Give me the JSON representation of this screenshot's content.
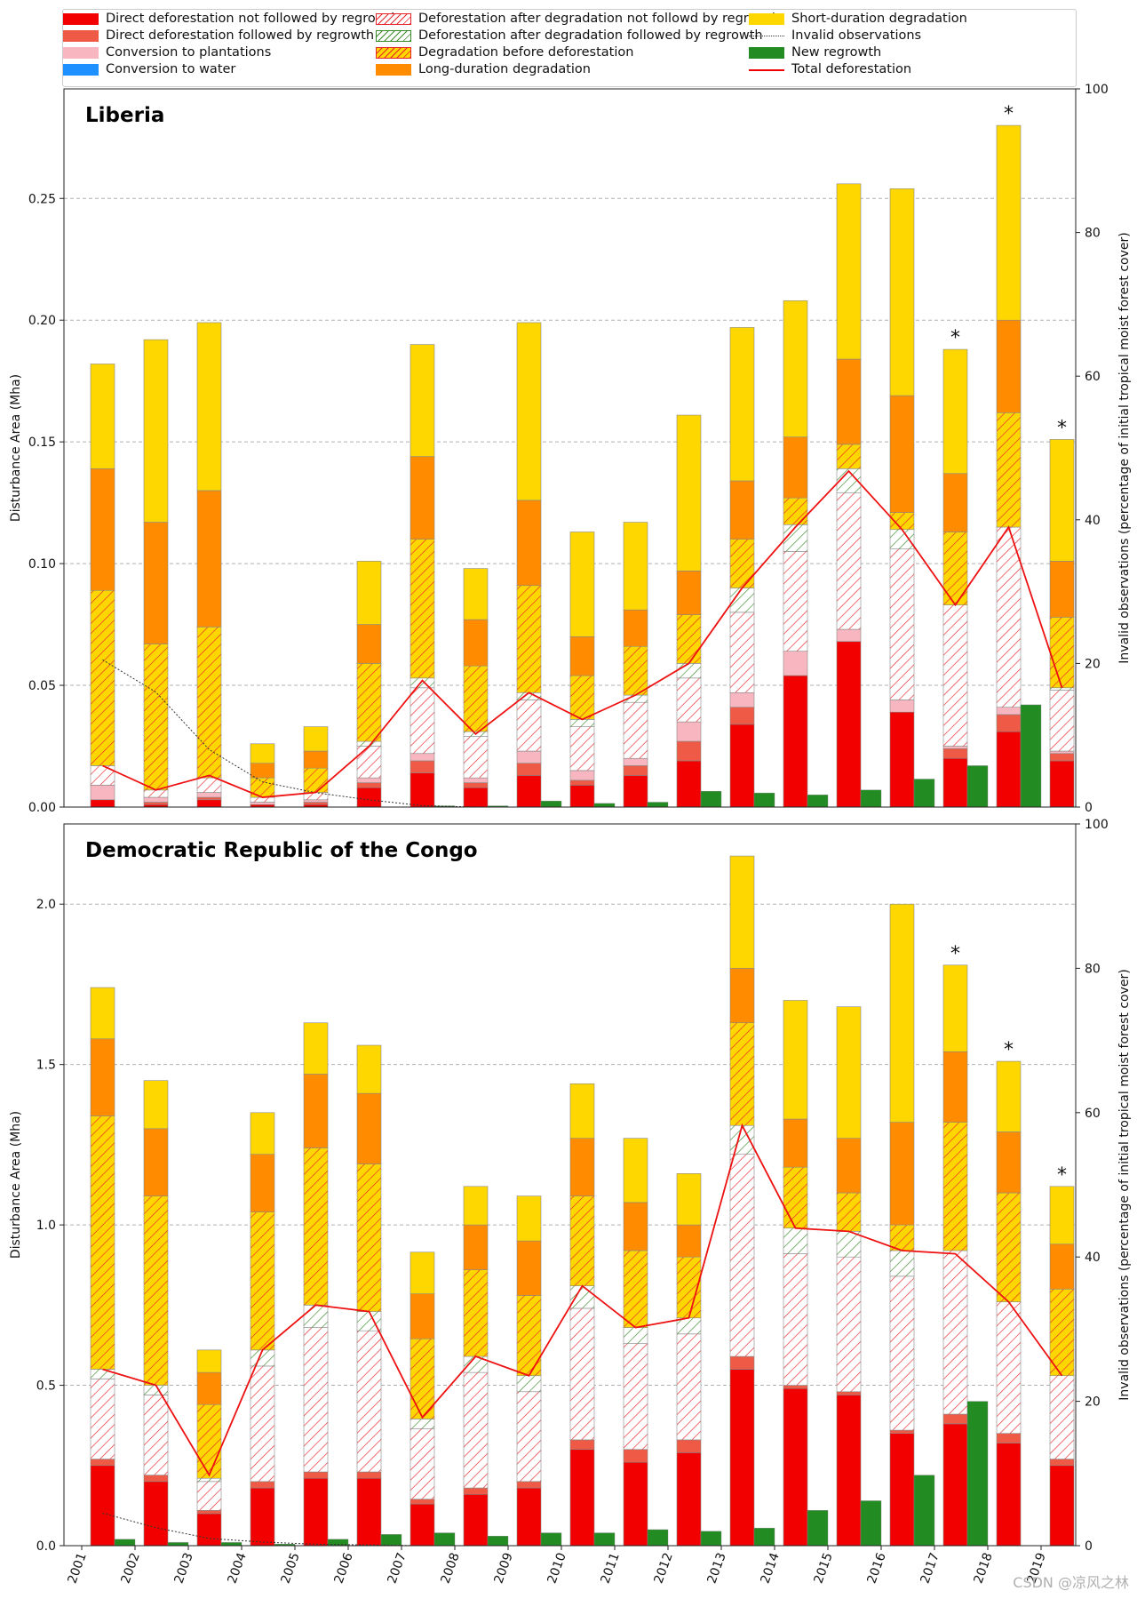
{
  "legend": {
    "items": [
      {
        "key": "direct_no_regrowth",
        "label": "Direct deforestation not followed by regrowth",
        "style": "solid",
        "color": "#f20000"
      },
      {
        "key": "direct_regrowth",
        "label": "Direct deforestation followed by regrowth",
        "style": "solid",
        "color": "#ee5a45"
      },
      {
        "key": "plantations",
        "label": "Conversion to plantations",
        "style": "solid",
        "color": "#f8b7c0"
      },
      {
        "key": "water",
        "label": "Conversion to water",
        "style": "solid",
        "color": "#1e90ff"
      },
      {
        "key": "after_deg_no_regrowth",
        "label": "Deforestation after degradation not followd by regrowth",
        "style": "hatch",
        "color": "#ffffff",
        "hatch": "#e8242a"
      },
      {
        "key": "after_deg_regrowth",
        "label": "Deforestation after degradation followed by regrowth",
        "style": "hatch",
        "color": "#ffffff",
        "hatch": "#3a8a2a"
      },
      {
        "key": "deg_before_defor",
        "label": "Degradation before deforestation",
        "style": "hatch",
        "color": "#ffd700",
        "hatch": "#e8242a"
      },
      {
        "key": "long_deg",
        "label": "Long-duration degradation",
        "style": "solid",
        "color": "#ff8c00"
      },
      {
        "key": "short_deg",
        "label": "Short-duration degradation",
        "style": "solid",
        "color": "#ffd700"
      },
      {
        "key": "invalid",
        "label": "Invalid observations",
        "style": "dotted",
        "color": "#333333"
      },
      {
        "key": "regrowth",
        "label": "New regrowth",
        "style": "solid",
        "color": "#228b22"
      },
      {
        "key": "total",
        "label": "Total deforestation",
        "style": "line",
        "color": "#ee1111"
      }
    ]
  },
  "watermark": "CSDN @凉风之林",
  "chart_data": [
    {
      "type": "bar",
      "title": "Liberia",
      "ylabel": "Disturbance Area (Mha)",
      "ylabel_right": "Invalid observations (percentage of initial tropical moist forest cover)",
      "ylim": [
        0,
        0.295
      ],
      "yticks": [
        0.0,
        0.05,
        0.1,
        0.15,
        0.2,
        0.25
      ],
      "ytick_labels": [
        "0.00",
        "0.05",
        "0.10",
        "0.15",
        "0.20",
        "0.25"
      ],
      "ylim_right": [
        0,
        100
      ],
      "yticks_right": [
        0,
        20,
        40,
        60,
        80,
        100
      ],
      "grid": true,
      "show_xticks": false,
      "categories": [
        "2001",
        "2002",
        "2003",
        "2004",
        "2005",
        "2006",
        "2007",
        "2008",
        "2009",
        "2010",
        "2011",
        "2012",
        "2013",
        "2014",
        "2015",
        "2016",
        "2017",
        "2018",
        "2019"
      ],
      "stack_order": [
        "direct_no_regrowth",
        "direct_regrowth",
        "plantations",
        "water",
        "after_deg_no_regrowth",
        "after_deg_regrowth",
        "deg_before_defor",
        "long_deg",
        "short_deg"
      ],
      "series": [
        {
          "key": "direct_no_regrowth",
          "values": [
            0.003,
            0.001,
            0.003,
            0.001,
            0.001,
            0.008,
            0.014,
            0.008,
            0.013,
            0.009,
            0.013,
            0.019,
            0.034,
            0.054,
            0.068,
            0.039,
            0.02,
            0.031,
            0.019
          ]
        },
        {
          "key": "direct_regrowth",
          "values": [
            0.0,
            0.001,
            0.001,
            0.0,
            0.001,
            0.002,
            0.005,
            0.002,
            0.005,
            0.002,
            0.004,
            0.008,
            0.007,
            0.0,
            0.0,
            0.0,
            0.004,
            0.007,
            0.003
          ]
        },
        {
          "key": "plantations",
          "values": [
            0.006,
            0.002,
            0.002,
            0.001,
            0.001,
            0.002,
            0.003,
            0.002,
            0.005,
            0.004,
            0.003,
            0.008,
            0.006,
            0.01,
            0.005,
            0.005,
            0.001,
            0.003,
            0.001
          ]
        },
        {
          "key": "water",
          "values": [
            0,
            0,
            0,
            0,
            0,
            0,
            0,
            0,
            0,
            0,
            0,
            0,
            0,
            0,
            0,
            0,
            0,
            0,
            0
          ]
        },
        {
          "key": "after_deg_no_regrowth",
          "values": [
            0.008,
            0.003,
            0.006,
            0.002,
            0.003,
            0.013,
            0.027,
            0.017,
            0.021,
            0.018,
            0.023,
            0.018,
            0.033,
            0.041,
            0.056,
            0.062,
            0.058,
            0.074,
            0.025
          ]
        },
        {
          "key": "after_deg_regrowth",
          "values": [
            0.0,
            0.0,
            0.0,
            0.0,
            0.0,
            0.002,
            0.004,
            0.002,
            0.003,
            0.003,
            0.003,
            0.006,
            0.01,
            0.011,
            0.01,
            0.008,
            0.0,
            0.0,
            0.001
          ]
        },
        {
          "key": "deg_before_defor",
          "values": [
            0.072,
            0.06,
            0.062,
            0.008,
            0.01,
            0.032,
            0.057,
            0.027,
            0.044,
            0.018,
            0.02,
            0.02,
            0.02,
            0.011,
            0.01,
            0.007,
            0.03,
            0.047,
            0.029
          ]
        },
        {
          "key": "long_deg",
          "values": [
            0.05,
            0.05,
            0.056,
            0.006,
            0.007,
            0.016,
            0.034,
            0.019,
            0.035,
            0.016,
            0.015,
            0.018,
            0.024,
            0.025,
            0.035,
            0.048,
            0.024,
            0.038,
            0.023
          ]
        },
        {
          "key": "short_deg",
          "values": [
            0.043,
            0.075,
            0.069,
            0.008,
            0.01,
            0.026,
            0.046,
            0.021,
            0.073,
            0.043,
            0.036,
            0.064,
            0.063,
            0.056,
            0.072,
            0.085,
            0.051,
            0.08,
            0.05
          ]
        }
      ],
      "regrowth": [
        0.0,
        0.0,
        0.0,
        0.0,
        0.0,
        0.0,
        0.0005,
        0.0005,
        0.0025,
        0.0015,
        0.002,
        0.0065,
        0.0058,
        0.005,
        0.007,
        0.0115,
        0.017,
        0.042
      ],
      "invalid_observations": [
        20.5,
        16.0,
        8.0,
        3.5,
        2.0,
        1.0,
        0.2,
        0.0,
        0.0,
        0.0,
        0.0,
        0.0,
        0.0,
        0.0,
        0.0,
        0.0,
        0.0,
        0.0,
        0.0
      ],
      "total_deforestation": [
        0.017,
        0.007,
        0.013,
        0.004,
        0.006,
        0.025,
        0.052,
        0.03,
        0.047,
        0.036,
        0.046,
        0.059,
        0.09,
        0.115,
        0.138,
        0.114,
        0.083,
        0.115,
        0.049
      ],
      "asterisks": [
        "2017",
        "2018",
        "2019"
      ],
      "asterisk_label": "*"
    },
    {
      "type": "bar",
      "title": "Democratic Republic of the Congo",
      "ylabel": "Disturbance Area (Mha)",
      "ylabel_right": "Invalid observations (percentage of initial tropical moist forest cover)",
      "ylim": [
        0,
        2.25
      ],
      "yticks": [
        0.0,
        0.5,
        1.0,
        1.5,
        2.0
      ],
      "ytick_labels": [
        "0.0",
        "0.5",
        "1.0",
        "1.5",
        "2.0"
      ],
      "ylim_right": [
        0,
        100
      ],
      "yticks_right": [
        0,
        20,
        40,
        60,
        80,
        100
      ],
      "grid": true,
      "show_xticks": true,
      "categories": [
        "2001",
        "2002",
        "2003",
        "2004",
        "2005",
        "2006",
        "2007",
        "2008",
        "2009",
        "2010",
        "2011",
        "2012",
        "2013",
        "2014",
        "2015",
        "2016",
        "2017",
        "2018",
        "2019"
      ],
      "stack_order": [
        "direct_no_regrowth",
        "direct_regrowth",
        "plantations",
        "water",
        "after_deg_no_regrowth",
        "after_deg_regrowth",
        "deg_before_defor",
        "long_deg",
        "short_deg"
      ],
      "series": [
        {
          "key": "direct_no_regrowth",
          "values": [
            0.25,
            0.2,
            0.1,
            0.18,
            0.21,
            0.21,
            0.13,
            0.16,
            0.18,
            0.3,
            0.26,
            0.29,
            0.55,
            0.49,
            0.47,
            0.35,
            0.38,
            0.32,
            0.25
          ]
        },
        {
          "key": "direct_regrowth",
          "values": [
            0.02,
            0.02,
            0.01,
            0.02,
            0.02,
            0.02,
            0.015,
            0.02,
            0.02,
            0.03,
            0.04,
            0.04,
            0.04,
            0.01,
            0.01,
            0.01,
            0.03,
            0.03,
            0.02
          ]
        },
        {
          "key": "plantations",
          "values": [
            0.0,
            0.0,
            0.0,
            0.0,
            0.0,
            0.0,
            0.0,
            0.0,
            0.0,
            0.0,
            0.0,
            0.0,
            0.0,
            0.0,
            0.0,
            0.0,
            0.0,
            0.0,
            0.0
          ]
        },
        {
          "key": "water",
          "values": [
            0,
            0,
            0,
            0,
            0,
            0,
            0,
            0,
            0,
            0,
            0,
            0,
            0,
            0,
            0,
            0,
            0,
            0,
            0
          ]
        },
        {
          "key": "after_deg_no_regrowth",
          "values": [
            0.25,
            0.25,
            0.09,
            0.36,
            0.45,
            0.44,
            0.22,
            0.36,
            0.28,
            0.41,
            0.33,
            0.33,
            0.63,
            0.41,
            0.42,
            0.48,
            0.51,
            0.41,
            0.26
          ]
        },
        {
          "key": "after_deg_regrowth",
          "values": [
            0.03,
            0.03,
            0.01,
            0.05,
            0.07,
            0.06,
            0.03,
            0.05,
            0.05,
            0.07,
            0.05,
            0.05,
            0.09,
            0.08,
            0.08,
            0.08,
            0.0,
            0.0,
            0.0
          ]
        },
        {
          "key": "deg_before_defor",
          "values": [
            0.79,
            0.59,
            0.23,
            0.43,
            0.49,
            0.46,
            0.25,
            0.27,
            0.25,
            0.28,
            0.24,
            0.19,
            0.32,
            0.19,
            0.12,
            0.08,
            0.4,
            0.34,
            0.27
          ]
        },
        {
          "key": "long_deg",
          "values": [
            0.24,
            0.21,
            0.1,
            0.18,
            0.23,
            0.22,
            0.14,
            0.14,
            0.17,
            0.18,
            0.15,
            0.1,
            0.17,
            0.15,
            0.17,
            0.32,
            0.22,
            0.19,
            0.14
          ]
        },
        {
          "key": "short_deg",
          "values": [
            0.16,
            0.15,
            0.07,
            0.13,
            0.16,
            0.15,
            0.13,
            0.12,
            0.14,
            0.17,
            0.2,
            0.16,
            0.35,
            0.37,
            0.41,
            0.68,
            0.27,
            0.22,
            0.18
          ]
        }
      ],
      "regrowth": [
        0.02,
        0.01,
        0.01,
        0.005,
        0.02,
        0.035,
        0.04,
        0.03,
        0.04,
        0.04,
        0.05,
        0.045,
        0.055,
        0.11,
        0.14,
        0.22,
        0.45
      ],
      "invalid_observations": [
        4.5,
        2.5,
        1.0,
        0.5,
        0.2,
        0.1,
        0.0,
        0.0,
        0.0,
        0.0,
        0.0,
        0.0,
        0.0,
        0.0,
        0.0,
        0.0,
        0.0,
        0.0,
        0.0
      ],
      "total_deforestation": [
        0.55,
        0.5,
        0.22,
        0.61,
        0.75,
        0.73,
        0.4,
        0.59,
        0.53,
        0.81,
        0.68,
        0.71,
        1.31,
        0.99,
        0.98,
        0.92,
        0.91,
        0.76,
        0.53
      ],
      "asterisks": [
        "2017",
        "2018",
        "2019"
      ],
      "asterisk_label": "*"
    }
  ]
}
